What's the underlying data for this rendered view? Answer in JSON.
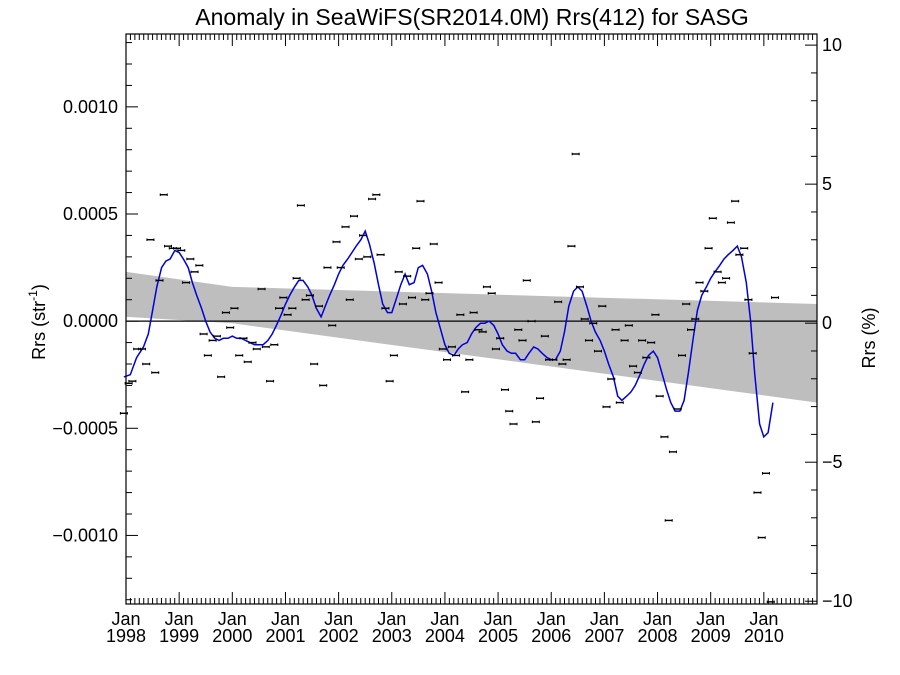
{
  "chart_data": {
    "type": "scatter",
    "title": "Anomaly in SeaWiFS(SR2014.0M) Rrs(412) for SASG",
    "ylabel_left": {
      "main": "Rrs (str",
      "sup": "-1",
      "close": ")"
    },
    "ylabel_right": "Rrs (%)",
    "xlim": [
      1998.0,
      2011.0
    ],
    "ylim": [
      -0.00132,
      0.00134
    ],
    "ylim_right": [
      -10.1,
      10.4
    ],
    "y_ticks": [
      {
        "value": 0.001,
        "label": "0.0010"
      },
      {
        "value": 0.0005,
        "label": "0.0005"
      },
      {
        "value": 0.0,
        "label": "0.0000"
      },
      {
        "value": -0.0005,
        "label": "−0.0005"
      },
      {
        "value": -0.001,
        "label": "−0.0010"
      }
    ],
    "y_ticks_right": [
      {
        "value": 10,
        "label": "10"
      },
      {
        "value": 5,
        "label": "5"
      },
      {
        "value": 0,
        "label": "0"
      },
      {
        "value": -5,
        "label": "−5"
      },
      {
        "value": -10,
        "label": "−10"
      }
    ],
    "x_ticks": [
      {
        "value": 1998,
        "month": "Jan",
        "year": "1998"
      },
      {
        "value": 1999,
        "month": "Jan",
        "year": "1999"
      },
      {
        "value": 2000,
        "month": "Jan",
        "year": "2000"
      },
      {
        "value": 2001,
        "month": "Jan",
        "year": "2001"
      },
      {
        "value": 2002,
        "month": "Jan",
        "year": "2002"
      },
      {
        "value": 2003,
        "month": "Jan",
        "year": "2003"
      },
      {
        "value": 2004,
        "month": "Jan",
        "year": "2004"
      },
      {
        "value": 2005,
        "month": "Jan",
        "year": "2005"
      },
      {
        "value": 2006,
        "month": "Jan",
        "year": "2006"
      },
      {
        "value": 2007,
        "month": "Jan",
        "year": "2007"
      },
      {
        "value": 2008,
        "month": "Jan",
        "year": "2008"
      },
      {
        "value": 2009,
        "month": "Jan",
        "year": "2009"
      },
      {
        "value": 2010,
        "month": "Jan",
        "year": "2010"
      }
    ],
    "band": {
      "x": [
        1998.0,
        2000.0,
        2011.0
      ],
      "upper": [
        0.00023,
        0.00016,
        8e-05
      ],
      "lower": [
        2e-05,
        -1e-05,
        -0.00038
      ]
    },
    "zero_line": 0,
    "points": [
      [
        1997.96,
        -0.00043
      ],
      [
        1998.05,
        -0.00029
      ],
      [
        1998.12,
        -0.00028
      ],
      [
        1998.21,
        -0.00013
      ],
      [
        1998.3,
        -0.00013
      ],
      [
        1998.38,
        -0.0002
      ],
      [
        1998.46,
        0.00038
      ],
      [
        1998.55,
        -0.00024
      ],
      [
        1998.63,
        0.00019
      ],
      [
        1998.71,
        0.00059
      ],
      [
        1998.79,
        0.00035
      ],
      [
        1998.88,
        0.00034
      ],
      [
        1998.96,
        0.00034
      ],
      [
        1999.04,
        0.00033
      ],
      [
        1999.13,
        0.00018
      ],
      [
        1999.21,
        0.00029
      ],
      [
        1999.29,
        0.00023
      ],
      [
        1999.38,
        0.00026
      ],
      [
        1999.46,
        -6e-05
      ],
      [
        1999.54,
        -0.00016
      ],
      [
        1999.63,
        -9e-05
      ],
      [
        1999.71,
        -7e-05
      ],
      [
        1999.79,
        -0.00026
      ],
      [
        1999.88,
        4e-05
      ],
      [
        1999.96,
        -3e-05
      ],
      [
        2000.04,
        6e-05
      ],
      [
        2000.13,
        -0.00016
      ],
      [
        2000.21,
        -8e-05
      ],
      [
        2000.29,
        -0.00019
      ],
      [
        2000.38,
        -0.0001
      ],
      [
        2000.46,
        -0.00013
      ],
      [
        2000.55,
        0.00015
      ],
      [
        2000.63,
        -0.00012
      ],
      [
        2000.71,
        -0.00028
      ],
      [
        2000.79,
        -0.00011
      ],
      [
        2000.88,
        6e-05
      ],
      [
        2000.96,
        0.00011
      ],
      [
        2001.04,
        3e-05
      ],
      [
        2001.13,
        6e-05
      ],
      [
        2001.21,
        0.0002
      ],
      [
        2001.29,
        0.00054
      ],
      [
        2001.38,
        0.0001
      ],
      [
        2001.46,
        0.00012
      ],
      [
        2001.54,
        -0.0002
      ],
      [
        2001.63,
        7e-05
      ],
      [
        2001.71,
        -0.0003
      ],
      [
        2001.79,
        0.00025
      ],
      [
        2001.88,
        -2e-05
      ],
      [
        2001.96,
        0.00037
      ],
      [
        2002.04,
        0.00025
      ],
      [
        2002.13,
        0.00044
      ],
      [
        2002.21,
        0.0001
      ],
      [
        2002.29,
        0.00049
      ],
      [
        2002.38,
        0.00029
      ],
      [
        2002.46,
        0.0004
      ],
      [
        2002.54,
        0.0003
      ],
      [
        2002.63,
        0.00057
      ],
      [
        2002.71,
        0.00059
      ],
      [
        2002.79,
        0.00031
      ],
      [
        2002.88,
        6e-05
      ],
      [
        2002.96,
        -0.00028
      ],
      [
        2003.04,
        -0.00016
      ],
      [
        2003.13,
        0.00023
      ],
      [
        2003.21,
        8e-05
      ],
      [
        2003.29,
        0.00021
      ],
      [
        2003.38,
        0.00011
      ],
      [
        2003.46,
        0.00034
      ],
      [
        2003.54,
        0.00056
      ],
      [
        2003.63,
        0.0001
      ],
      [
        2003.71,
        0.00013
      ],
      [
        2003.79,
        0.00036
      ],
      [
        2003.88,
        0.00018
      ],
      [
        2003.96,
        -0.00013
      ],
      [
        2004.04,
        -0.00018
      ],
      [
        2004.13,
        -0.00012
      ],
      [
        2004.21,
        -0.00016
      ],
      [
        2004.29,
        3e-05
      ],
      [
        2004.38,
        -0.00033
      ],
      [
        2004.46,
        -0.00018
      ],
      [
        2004.54,
        4e-05
      ],
      [
        2004.63,
        -4e-05
      ],
      [
        2004.71,
        -5e-05
      ],
      [
        2004.79,
        0.00016
      ],
      [
        2004.88,
        0.00013
      ],
      [
        2004.96,
        -0.00013
      ],
      [
        2005.04,
        -8e-05
      ],
      [
        2005.13,
        -0.00032
      ],
      [
        2005.21,
        -0.00042
      ],
      [
        2005.29,
        -0.00048
      ],
      [
        2005.38,
        -4e-05
      ],
      [
        2005.46,
        -9e-05
      ],
      [
        2005.54,
        0.00019
      ],
      [
        2005.63,
        0.0
      ],
      [
        2005.71,
        -0.00047
      ],
      [
        2005.79,
        -0.00036
      ],
      [
        2005.88,
        -7e-05
      ],
      [
        2005.96,
        -0.00018
      ],
      [
        2006.04,
        -0.00018
      ],
      [
        2006.13,
        9e-05
      ],
      [
        2006.21,
        -0.0002
      ],
      [
        2006.29,
        -0.00018
      ],
      [
        2006.38,
        0.00035
      ],
      [
        2006.46,
        0.00078
      ],
      [
        2006.54,
        0.00016
      ],
      [
        2006.63,
        1e-05
      ],
      [
        2006.71,
        -9e-05
      ],
      [
        2006.79,
        -1e-05
      ],
      [
        2006.88,
        -0.00014
      ],
      [
        2006.96,
        7e-05
      ],
      [
        2007.04,
        -0.0004
      ],
      [
        2007.13,
        -0.00027
      ],
      [
        2007.21,
        -4e-05
      ],
      [
        2007.29,
        -0.00038
      ],
      [
        2007.38,
        -9e-05
      ],
      [
        2007.46,
        -2e-05
      ],
      [
        2007.54,
        -0.00021
      ],
      [
        2007.63,
        -0.00024
      ],
      [
        2007.71,
        -9e-05
      ],
      [
        2007.79,
        -0.00017
      ],
      [
        2007.88,
        -0.0001
      ],
      [
        2007.96,
        3e-05
      ],
      [
        2008.04,
        -0.00035
      ],
      [
        2008.13,
        -0.00054
      ],
      [
        2008.21,
        -0.00093
      ],
      [
        2008.29,
        -0.00061
      ],
      [
        2008.38,
        -0.00041
      ],
      [
        2008.46,
        -0.00016
      ],
      [
        2008.54,
        8e-05
      ],
      [
        2008.63,
        -4e-05
      ],
      [
        2008.71,
        1e-05
      ],
      [
        2008.79,
        0.00018
      ],
      [
        2008.88,
        0.00014
      ],
      [
        2008.96,
        0.00034
      ],
      [
        2009.04,
        0.00048
      ],
      [
        2009.13,
        0.00023
      ],
      [
        2009.21,
        0.00018
      ],
      [
        2009.29,
        0.0002
      ],
      [
        2009.38,
        0.00046
      ],
      [
        2009.46,
        0.00056
      ],
      [
        2009.54,
        0.00031
      ],
      [
        2009.63,
        0.00034
      ],
      [
        2009.71,
        0.0001
      ],
      [
        2009.79,
        -0.00015
      ],
      [
        2009.88,
        -0.0008
      ],
      [
        2009.96,
        -0.00101
      ],
      [
        2010.04,
        -0.00071
      ],
      [
        2010.13,
        -0.00131
      ],
      [
        2010.21,
        0.00011
      ]
    ],
    "error_halfwidth": 6e-06,
    "smooth_line": [
      [
        1997.96,
        -0.00026
      ],
      [
        1998.08,
        -0.00025
      ],
      [
        1998.2,
        -0.00017
      ],
      [
        1998.33,
        -0.00012
      ],
      [
        1998.42,
        -6e-05
      ],
      [
        1998.5,
        5e-05
      ],
      [
        1998.58,
        0.00016
      ],
      [
        1998.67,
        0.00025
      ],
      [
        1998.75,
        0.00028
      ],
      [
        1998.83,
        0.00029
      ],
      [
        1998.92,
        0.00033
      ],
      [
        1999.0,
        0.00032
      ],
      [
        1999.08,
        0.00029
      ],
      [
        1999.17,
        0.00025
      ],
      [
        1999.25,
        0.00018
      ],
      [
        1999.33,
        0.00012
      ],
      [
        1999.42,
        6e-05
      ],
      [
        1999.5,
        0.0
      ],
      [
        1999.58,
        -5e-05
      ],
      [
        1999.67,
        -8e-05
      ],
      [
        1999.75,
        -9e-05
      ],
      [
        1999.83,
        -8e-05
      ],
      [
        1999.92,
        -8e-05
      ],
      [
        2000.0,
        -7e-05
      ],
      [
        2000.08,
        -8e-05
      ],
      [
        2000.17,
        -8e-05
      ],
      [
        2000.25,
        -9e-05
      ],
      [
        2000.33,
        -0.0001
      ],
      [
        2000.42,
        -0.00011
      ],
      [
        2000.5,
        -0.00011
      ],
      [
        2000.58,
        -0.00011
      ],
      [
        2000.67,
        -9e-05
      ],
      [
        2000.75,
        -6e-05
      ],
      [
        2000.83,
        -2e-05
      ],
      [
        2000.92,
        3e-05
      ],
      [
        2001.0,
        8e-05
      ],
      [
        2001.08,
        0.00012
      ],
      [
        2001.17,
        0.00016
      ],
      [
        2001.25,
        0.00019
      ],
      [
        2001.33,
        0.00019
      ],
      [
        2001.42,
        0.00016
      ],
      [
        2001.5,
        0.00012
      ],
      [
        2001.58,
        6e-05
      ],
      [
        2001.67,
        2e-05
      ],
      [
        2001.75,
        7e-05
      ],
      [
        2001.83,
        0.00012
      ],
      [
        2001.92,
        0.00017
      ],
      [
        2002.0,
        0.00022
      ],
      [
        2002.08,
        0.00026
      ],
      [
        2002.17,
        0.00029
      ],
      [
        2002.25,
        0.00032
      ],
      [
        2002.33,
        0.00035
      ],
      [
        2002.42,
        0.00038
      ],
      [
        2002.5,
        0.00042
      ],
      [
        2002.58,
        0.00036
      ],
      [
        2002.67,
        0.00027
      ],
      [
        2002.75,
        0.00017
      ],
      [
        2002.83,
        8e-05
      ],
      [
        2002.92,
        4e-05
      ],
      [
        2003.0,
        4e-05
      ],
      [
        2003.08,
        0.0001
      ],
      [
        2003.17,
        0.00017
      ],
      [
        2003.25,
        0.00022
      ],
      [
        2003.33,
        0.00017
      ],
      [
        2003.42,
        0.00018
      ],
      [
        2003.5,
        0.00025
      ],
      [
        2003.58,
        0.00026
      ],
      [
        2003.67,
        0.00022
      ],
      [
        2003.75,
        0.00014
      ],
      [
        2003.83,
        4e-05
      ],
      [
        2003.92,
        -4e-05
      ],
      [
        2004.0,
        -0.00011
      ],
      [
        2004.08,
        -0.00015
      ],
      [
        2004.17,
        -0.00016
      ],
      [
        2004.25,
        -0.00013
      ],
      [
        2004.33,
        -0.00011
      ],
      [
        2004.42,
        -0.0001
      ],
      [
        2004.5,
        -6e-05
      ],
      [
        2004.58,
        -3e-05
      ],
      [
        2004.67,
        -1e-05
      ],
      [
        2004.75,
        -1e-05
      ],
      [
        2004.83,
        0.0
      ],
      [
        2004.92,
        -2e-05
      ],
      [
        2005.0,
        -6e-05
      ],
      [
        2005.08,
        -0.00011
      ],
      [
        2005.17,
        -0.00014
      ],
      [
        2005.25,
        -0.00015
      ],
      [
        2005.33,
        -0.00015
      ],
      [
        2005.42,
        -0.00018
      ],
      [
        2005.5,
        -0.00018
      ],
      [
        2005.58,
        -0.00015
      ],
      [
        2005.67,
        -0.00012
      ],
      [
        2005.75,
        -0.00013
      ],
      [
        2005.83,
        -0.00015
      ],
      [
        2005.92,
        -0.00017
      ],
      [
        2006.0,
        -0.00018
      ],
      [
        2006.08,
        -0.00018
      ],
      [
        2006.17,
        -0.00014
      ],
      [
        2006.25,
        -5e-05
      ],
      [
        2006.33,
        7e-05
      ],
      [
        2006.42,
        0.00014
      ],
      [
        2006.5,
        0.00016
      ],
      [
        2006.58,
        0.00014
      ],
      [
        2006.67,
        7e-05
      ],
      [
        2006.75,
        0.0
      ],
      [
        2006.83,
        -5e-05
      ],
      [
        2006.92,
        -9e-05
      ],
      [
        2007.0,
        -0.00014
      ],
      [
        2007.08,
        -0.0002
      ],
      [
        2007.17,
        -0.00026
      ],
      [
        2007.25,
        -0.00035
      ],
      [
        2007.33,
        -0.00037
      ],
      [
        2007.42,
        -0.00035
      ],
      [
        2007.5,
        -0.00033
      ],
      [
        2007.58,
        -0.0003
      ],
      [
        2007.67,
        -0.00025
      ],
      [
        2007.75,
        -0.0002
      ],
      [
        2007.83,
        -0.00016
      ],
      [
        2007.92,
        -0.00014
      ],
      [
        2008.0,
        -0.00017
      ],
      [
        2008.08,
        -0.00024
      ],
      [
        2008.17,
        -0.00032
      ],
      [
        2008.25,
        -0.00038
      ],
      [
        2008.33,
        -0.00042
      ],
      [
        2008.42,
        -0.00042
      ],
      [
        2008.5,
        -0.00037
      ],
      [
        2008.58,
        -0.00024
      ],
      [
        2008.67,
        -8e-05
      ],
      [
        2008.75,
        5e-05
      ],
      [
        2008.83,
        0.00012
      ],
      [
        2008.92,
        0.00016
      ],
      [
        2009.0,
        0.0002
      ],
      [
        2009.08,
        0.00023
      ],
      [
        2009.17,
        0.00026
      ],
      [
        2009.25,
        0.00029
      ],
      [
        2009.33,
        0.00031
      ],
      [
        2009.42,
        0.00033
      ],
      [
        2009.5,
        0.00035
      ],
      [
        2009.58,
        0.0003
      ],
      [
        2009.67,
        0.00018
      ],
      [
        2009.75,
        0.0
      ],
      [
        2009.83,
        -0.00025
      ],
      [
        2009.92,
        -0.00048
      ],
      [
        2010.0,
        -0.00054
      ],
      [
        2010.08,
        -0.00052
      ],
      [
        2010.17,
        -0.00038
      ]
    ],
    "colors": {
      "band": "#bebebe",
      "smooth": "#0000dd",
      "points": "#000000",
      "axes": "#000000"
    },
    "grid": false,
    "legend": "none"
  }
}
